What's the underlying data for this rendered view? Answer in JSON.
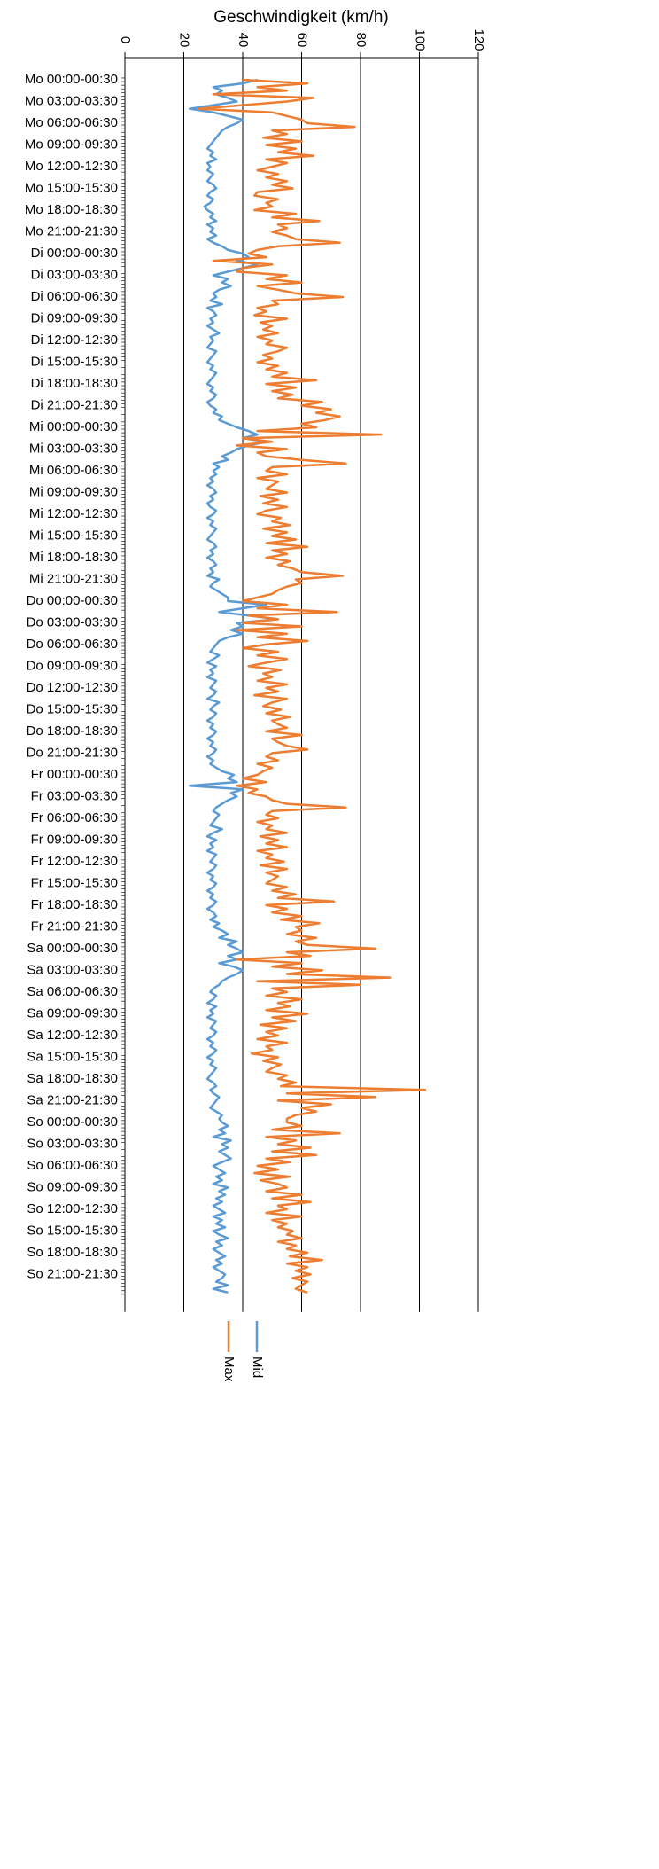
{
  "chart_data": {
    "type": "line",
    "title": "Geschwindigkeit (km/h)",
    "orientation": "horizontal",
    "categories": [
      "Mo 00:00-00:30",
      null,
      null,
      null,
      null,
      null,
      "Mo 03:00-03:30",
      null,
      null,
      null,
      null,
      null,
      "Mo 06:00-06:30",
      null,
      null,
      null,
      null,
      null,
      "Mo 09:00-09:30",
      null,
      null,
      null,
      null,
      null,
      "Mo 12:00-12:30",
      null,
      null,
      null,
      null,
      null,
      "Mo 15:00-15:30",
      null,
      null,
      null,
      null,
      null,
      "Mo 18:00-18:30",
      null,
      null,
      null,
      null,
      null,
      "Mo 21:00-21:30",
      null,
      null,
      null,
      null,
      null,
      "Di 00:00-00:30",
      null,
      null,
      null,
      null,
      null,
      "Di 03:00-03:30",
      null,
      null,
      null,
      null,
      null,
      "Di 06:00-06:30",
      null,
      null,
      null,
      null,
      null,
      "Di 09:00-09:30",
      null,
      null,
      null,
      null,
      null,
      "Di 12:00-12:30",
      null,
      null,
      null,
      null,
      null,
      "Di 15:00-15:30",
      null,
      null,
      null,
      null,
      null,
      "Di 18:00-18:30",
      null,
      null,
      null,
      null,
      null,
      "Di 21:00-21:30",
      null,
      null,
      null,
      null,
      null,
      "Mi 00:00-00:30",
      null,
      null,
      null,
      null,
      null,
      "Mi 03:00-03:30",
      null,
      null,
      null,
      null,
      null,
      "Mi 06:00-06:30",
      null,
      null,
      null,
      null,
      null,
      "Mi 09:00-09:30",
      null,
      null,
      null,
      null,
      null,
      "Mi 12:00-12:30",
      null,
      null,
      null,
      null,
      null,
      "Mi 15:00-15:30",
      null,
      null,
      null,
      null,
      null,
      "Mi 18:00-18:30",
      null,
      null,
      null,
      null,
      null,
      "Mi 21:00-21:30",
      null,
      null,
      null,
      null,
      null,
      "Do 00:00-00:30",
      null,
      null,
      null,
      null,
      null,
      "Do 03:00-03:30",
      null,
      null,
      null,
      null,
      null,
      "Do 06:00-06:30",
      null,
      null,
      null,
      null,
      null,
      "Do 09:00-09:30",
      null,
      null,
      null,
      null,
      null,
      "Do 12:00-12:30",
      null,
      null,
      null,
      null,
      null,
      "Do 15:00-15:30",
      null,
      null,
      null,
      null,
      null,
      "Do 18:00-18:30",
      null,
      null,
      null,
      null,
      null,
      "Do 21:00-21:30",
      null,
      null,
      null,
      null,
      null,
      "Fr 00:00-00:30",
      null,
      null,
      null,
      null,
      null,
      "Fr 03:00-03:30",
      null,
      null,
      null,
      null,
      null,
      "Fr 06:00-06:30",
      null,
      null,
      null,
      null,
      null,
      "Fr 09:00-09:30",
      null,
      null,
      null,
      null,
      null,
      "Fr 12:00-12:30",
      null,
      null,
      null,
      null,
      null,
      "Fr 15:00-15:30",
      null,
      null,
      null,
      null,
      null,
      "Fr 18:00-18:30",
      null,
      null,
      null,
      null,
      null,
      "Fr 21:00-21:30",
      null,
      null,
      null,
      null,
      null,
      "Sa 00:00-00:30",
      null,
      null,
      null,
      null,
      null,
      "Sa 03:00-03:30",
      null,
      null,
      null,
      null,
      null,
      "Sa 06:00-06:30",
      null,
      null,
      null,
      null,
      null,
      "Sa 09:00-09:30",
      null,
      null,
      null,
      null,
      null,
      "Sa 12:00-12:30",
      null,
      null,
      null,
      null,
      null,
      "Sa 15:00-15:30",
      null,
      null,
      null,
      null,
      null,
      "Sa 18:00-18:30",
      null,
      null,
      null,
      null,
      null,
      "Sa 21:00-21:30",
      null,
      null,
      null,
      null,
      null,
      "So 00:00-00:30",
      null,
      null,
      null,
      null,
      null,
      "So 03:00-03:30",
      null,
      null,
      null,
      null,
      null,
      "So 06:00-06:30",
      null,
      null,
      null,
      null,
      null,
      "So 09:00-09:30",
      null,
      null,
      null,
      null,
      null,
      "So 12:00-12:30",
      null,
      null,
      null,
      null,
      null,
      "So 15:00-15:30",
      null,
      null,
      null,
      null,
      null,
      "So 18:00-18:30",
      null,
      null,
      null,
      null,
      null,
      "So 21:00-21:30",
      null,
      null,
      null,
      null,
      null
    ],
    "series": [
      {
        "name": "Mid",
        "color": "#5b9bd5",
        "values": [
          45,
          40,
          30,
          33,
          31,
          35,
          38,
          30,
          22,
          30,
          35,
          40,
          38,
          35,
          33,
          32,
          31,
          30,
          29,
          28,
          30,
          29,
          31,
          28,
          29,
          28,
          30,
          29,
          28,
          30,
          31,
          29,
          28,
          30,
          29,
          27,
          28,
          30,
          29,
          31,
          28,
          30,
          29,
          31,
          28,
          30,
          33,
          35,
          40,
          42,
          38,
          45,
          40,
          35,
          30,
          35,
          33,
          36,
          32,
          30,
          31,
          29,
          33,
          28,
          30,
          31,
          29,
          30,
          28,
          30,
          32,
          29,
          30,
          29,
          28,
          31,
          30,
          29,
          28,
          30,
          29,
          31,
          30,
          29,
          28,
          30,
          29,
          31,
          30,
          28,
          29,
          31,
          30,
          33,
          32,
          35,
          38,
          42,
          45,
          40,
          48,
          42,
          38,
          36,
          33,
          35,
          30,
          32,
          30,
          31,
          29,
          30,
          28,
          30,
          31,
          29,
          30,
          28,
          29,
          31,
          30,
          28,
          30,
          29,
          31,
          30,
          29,
          28,
          30,
          31,
          29,
          30,
          28,
          30,
          31,
          29,
          30,
          28,
          32,
          30,
          29,
          31,
          33,
          35,
          35,
          48,
          40,
          32,
          42,
          52,
          38,
          40,
          36,
          40,
          35,
          32,
          31,
          30,
          29,
          32,
          30,
          28,
          31,
          29,
          30,
          28,
          31,
          30,
          29,
          31,
          30,
          28,
          32,
          30,
          29,
          31,
          30,
          28,
          30,
          29,
          31,
          30,
          28,
          30,
          29,
          31,
          30,
          28,
          30,
          29,
          31,
          33,
          37,
          35,
          38,
          22,
          40,
          36,
          38,
          35,
          33,
          31,
          30,
          32,
          31,
          30,
          29,
          33,
          30,
          28,
          31,
          29,
          30,
          28,
          31,
          30,
          29,
          31,
          30,
          28,
          30,
          29,
          31,
          30,
          28,
          30,
          29,
          31,
          30,
          28,
          30,
          31,
          29,
          32,
          30,
          33,
          35,
          32,
          38,
          35,
          38,
          40,
          35,
          38,
          32,
          37,
          40,
          38,
          35,
          33,
          32,
          30,
          29,
          31,
          30,
          28,
          31,
          29,
          30,
          28,
          31,
          30,
          29,
          31,
          30,
          28,
          30,
          29,
          31,
          30,
          28,
          30,
          29,
          31,
          30,
          29,
          28,
          30,
          31,
          29,
          30,
          32,
          31,
          30,
          29,
          31,
          33,
          32,
          33,
          35,
          32,
          34,
          30,
          36,
          33,
          35,
          32,
          34,
          36,
          33,
          30,
          32,
          34,
          31,
          33,
          30,
          35,
          32,
          34,
          31,
          33,
          30,
          32,
          34,
          30,
          33,
          31,
          34,
          30,
          32,
          35,
          31,
          33,
          30,
          32,
          34,
          31,
          33,
          30,
          32,
          34,
          33,
          31,
          35,
          30,
          35
        ]
      },
      {
        "name": "Max",
        "color": "#ed7d31",
        "values": [
          40,
          62,
          45,
          55,
          30,
          64,
          55,
          40,
          25,
          50,
          55,
          60,
          62,
          78,
          50,
          55,
          47,
          60,
          48,
          58,
          52,
          64,
          48,
          55,
          50,
          45,
          52,
          48,
          55,
          50,
          57,
          45,
          44,
          52,
          48,
          50,
          44,
          58,
          50,
          66,
          52,
          55,
          50,
          55,
          58,
          73,
          52,
          45,
          42,
          48,
          30,
          50,
          40,
          38,
          55,
          48,
          60,
          45,
          52,
          58,
          74,
          50,
          52,
          45,
          48,
          44,
          55,
          46,
          50,
          47,
          52,
          45,
          50,
          48,
          55,
          52,
          47,
          50,
          45,
          52,
          48,
          55,
          50,
          65,
          48,
          58,
          50,
          57,
          52,
          67,
          60,
          70,
          65,
          73,
          68,
          60,
          65,
          45,
          87,
          40,
          50,
          38,
          55,
          45,
          48,
          60,
          75,
          50,
          48,
          55,
          45,
          52,
          50,
          48,
          55,
          46,
          52,
          47,
          55,
          48,
          45,
          53,
          50,
          56,
          47,
          55,
          50,
          58,
          48,
          62,
          50,
          55,
          48,
          56,
          52,
          57,
          60,
          74,
          58,
          60,
          55,
          52,
          50,
          45,
          40,
          55,
          45,
          72,
          42,
          52,
          40,
          60,
          38,
          55,
          45,
          62,
          48,
          40,
          52,
          45,
          55,
          48,
          42,
          53,
          47,
          50,
          45,
          55,
          48,
          52,
          44,
          55,
          50,
          47,
          53,
          48,
          56,
          50,
          52,
          55,
          48,
          60,
          50,
          52,
          55,
          62,
          50,
          48,
          52,
          45,
          50,
          47,
          45,
          40,
          48,
          38,
          45,
          42,
          48,
          50,
          55,
          75,
          50,
          48,
          52,
          45,
          50,
          48,
          55,
          46,
          52,
          48,
          55,
          45,
          50,
          48,
          54,
          46,
          55,
          48,
          52,
          50,
          48,
          55,
          50,
          58,
          52,
          71,
          48,
          55,
          50,
          60,
          53,
          66,
          58,
          60,
          55,
          65,
          58,
          62,
          85,
          55,
          63,
          38,
          60,
          50,
          67,
          55,
          90,
          45,
          80,
          50,
          55,
          48,
          60,
          52,
          56,
          48,
          62,
          50,
          58,
          46,
          55,
          48,
          52,
          45,
          55,
          48,
          50,
          43,
          52,
          47,
          53,
          50,
          48,
          55,
          52,
          58,
          53,
          102,
          55,
          85,
          52,
          70,
          60,
          65,
          58,
          55,
          55,
          60,
          50,
          73,
          48,
          58,
          52,
          63,
          50,
          65,
          48,
          56,
          45,
          52,
          44,
          56,
          46,
          52,
          55,
          48,
          60,
          50,
          63,
          52,
          55,
          48,
          60,
          50,
          55,
          52,
          57,
          55,
          60,
          52,
          58,
          55,
          62,
          56,
          67,
          55,
          62,
          58,
          63,
          57,
          62,
          60,
          58,
          62
        ]
      }
    ],
    "ylim": [
      0,
      120
    ],
    "yticks": [
      0,
      20,
      40,
      60,
      80,
      100,
      120
    ],
    "grid": true
  }
}
